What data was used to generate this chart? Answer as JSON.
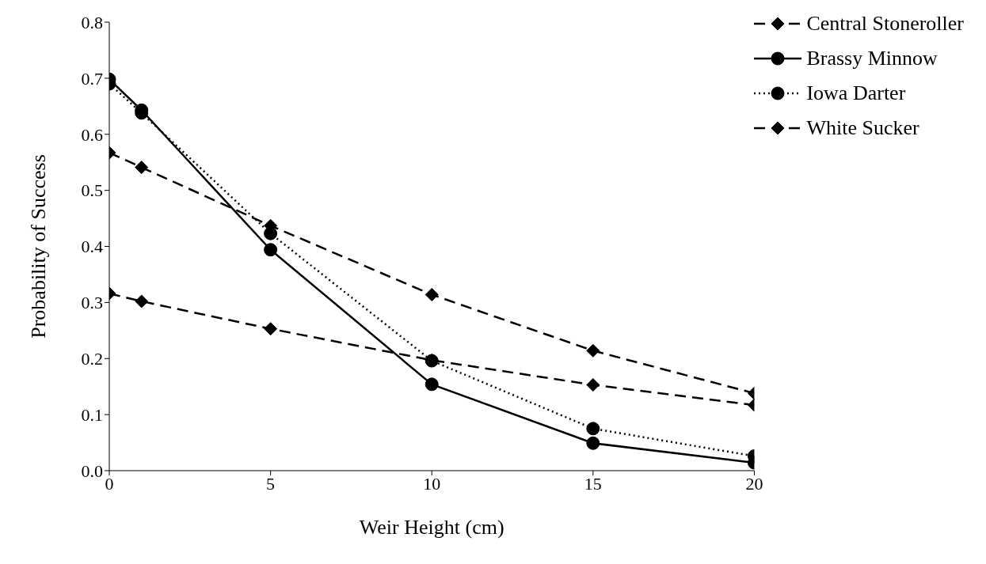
{
  "chart_data": {
    "type": "line",
    "xlabel": "Weir Height (cm)",
    "ylabel": "Probability of Success",
    "x": [
      0,
      1,
      5,
      10,
      15,
      20
    ],
    "series": [
      {
        "name": "Central Stoneroller",
        "color": "#000000",
        "marker": "diamond",
        "line_style": "dashed",
        "values": [
          0.316,
          0.302,
          0.253,
          0.197,
          0.153,
          0.117
        ]
      },
      {
        "name": "Brassy Minnow",
        "color": "#000000",
        "marker": "circle",
        "line_style": "solid",
        "values": [
          0.698,
          0.643,
          0.394,
          0.154,
          0.049,
          0.014
        ]
      },
      {
        "name": "Iowa Darter",
        "color": "#000000",
        "marker": "circle",
        "line_style": "dotted",
        "values": [
          0.69,
          0.638,
          0.423,
          0.196,
          0.075,
          0.026
        ]
      },
      {
        "name": "White Sucker",
        "color": "#000000",
        "marker": "diamond",
        "line_style": "dashed",
        "values": [
          0.567,
          0.541,
          0.437,
          0.314,
          0.214,
          0.138
        ]
      }
    ],
    "xlim": [
      0,
      20
    ],
    "xticks": [
      0,
      5,
      10,
      15,
      20
    ],
    "ylim": [
      0,
      0.8
    ],
    "yticks": [
      {
        "value": 0,
        "label": "0.0"
      },
      {
        "value": 0.1,
        "label": "0.1"
      },
      {
        "value": 0.2,
        "label": "0.2"
      },
      {
        "value": 0.3,
        "label": "0.3"
      },
      {
        "value": 0.4,
        "label": "0.4"
      },
      {
        "value": 0.5,
        "label": "0.5"
      },
      {
        "value": 0.6,
        "label": "0.6"
      },
      {
        "value": 0.7,
        "label": "0.7"
      },
      {
        "value": 0.8,
        "label": "0.8"
      }
    ],
    "grid": false,
    "legend": "top right"
  }
}
